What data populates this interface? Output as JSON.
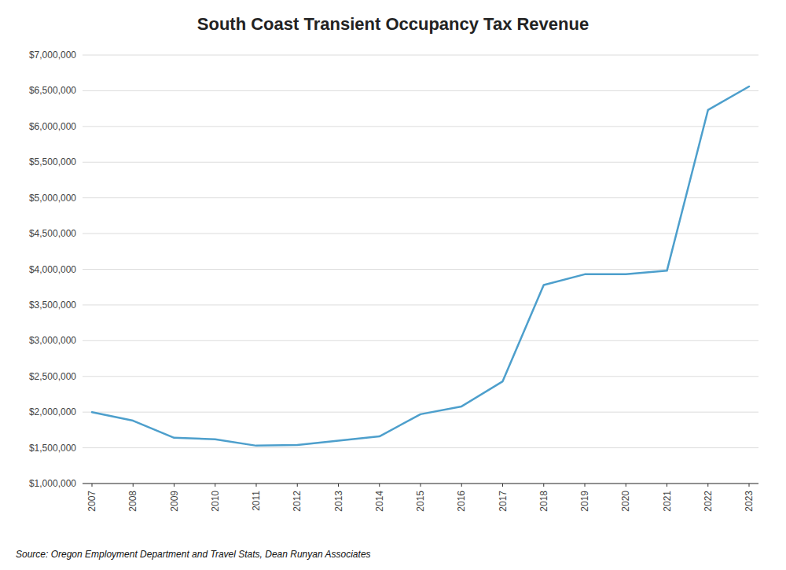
{
  "chart_data": {
    "type": "line",
    "title": "South Coast Transient Occupancy Tax Revenue",
    "source": "Source: Oregon Employment Department and Travel Stats, Dean Runyan Associates",
    "x": [
      2007,
      2008,
      2009,
      2010,
      2011,
      2012,
      2013,
      2014,
      2015,
      2016,
      2017,
      2018,
      2019,
      2020,
      2021,
      2022,
      2023
    ],
    "values": [
      2000000,
      1880000,
      1640000,
      1620000,
      1530000,
      1540000,
      1600000,
      1660000,
      1970000,
      2080000,
      2430000,
      3780000,
      3930000,
      3930000,
      3980000,
      6230000,
      6560000
    ],
    "color": "#4D9FCC",
    "xlim": [
      2007,
      2023
    ],
    "xticks": [
      2007,
      2008,
      2009,
      2010,
      2011,
      2012,
      2013,
      2014,
      2015,
      2016,
      2017,
      2018,
      2019,
      2020,
      2021,
      2022,
      2023
    ],
    "ylim": [
      1000000,
      7000000
    ],
    "yticks": [
      {
        "value": 1000000,
        "label": "$1,000,000"
      },
      {
        "value": 1500000,
        "label": "$1,500,000"
      },
      {
        "value": 2000000,
        "label": "$2,000,000"
      },
      {
        "value": 2500000,
        "label": "$2,500,000"
      },
      {
        "value": 3000000,
        "label": "$3,000,000"
      },
      {
        "value": 3500000,
        "label": "$3,500,000"
      },
      {
        "value": 4000000,
        "label": "$4,000,000"
      },
      {
        "value": 4500000,
        "label": "$4,500,000"
      },
      {
        "value": 5000000,
        "label": "$5,000,000"
      },
      {
        "value": 5500000,
        "label": "$5,500,000"
      },
      {
        "value": 6000000,
        "label": "$6,000,000"
      },
      {
        "value": 6500000,
        "label": "$6,500,000"
      },
      {
        "value": 7000000,
        "label": "$7,000,000"
      }
    ],
    "grid": true
  }
}
